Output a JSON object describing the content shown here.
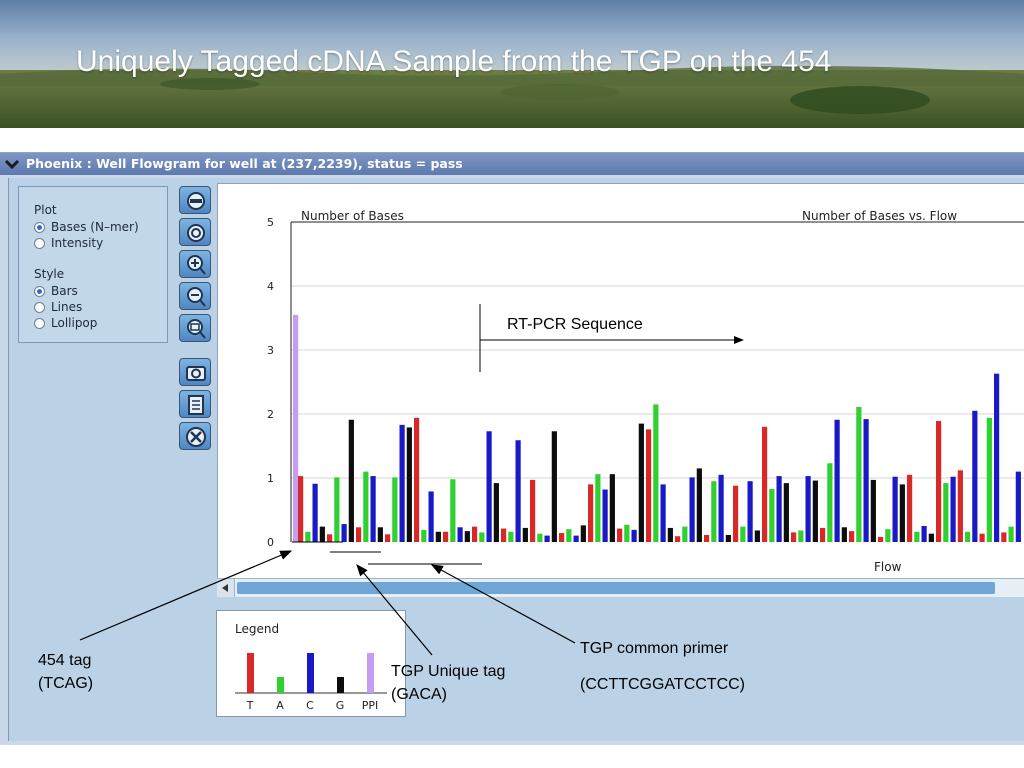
{
  "slide": {
    "title": "Uniquely Tagged cDNA Sample from the TGP on the 454"
  },
  "window": {
    "title": "Phoenix : Well Flowgram for well at (237,2239), status = pass"
  },
  "plot_options": {
    "plot_label": "Plot",
    "plot_modes": [
      {
        "label": "Bases (N–mer)",
        "selected": true
      },
      {
        "label": "Intensity",
        "selected": false
      }
    ],
    "style_label": "Style",
    "styles": [
      {
        "label": "Bars",
        "selected": true
      },
      {
        "label": "Lines",
        "selected": false
      },
      {
        "label": "Lollipop",
        "selected": false
      }
    ]
  },
  "toolbar": {
    "buttons": [
      "fit-icon",
      "reset-icon",
      "zoom-in-icon",
      "zoom-out-icon",
      "zoom-area-icon",
      "camera-icon",
      "copy-icon",
      "close-icon"
    ]
  },
  "colors": {
    "T": "#d92828",
    "A": "#2fd02f",
    "C": "#1919c6",
    "G": "#0d0d0d",
    "PPI": "#c39ef2",
    "accent": "#2b6fd0"
  },
  "chart_data": {
    "type": "bar",
    "title": "Number of Bases vs. Flow",
    "ylabel": "Number of Bases",
    "xlabel": "Flow",
    "ylim": [
      0,
      5
    ],
    "yticks": [
      "0",
      "1",
      "2",
      "3",
      "4",
      "5"
    ],
    "grid": true,
    "flow_order": [
      "T",
      "A",
      "C",
      "G"
    ],
    "series": [
      {
        "name": "PPI",
        "values": [
          3.55
        ]
      },
      {
        "name": "T",
        "values": [
          1.03,
          0.12,
          0.23,
          0.12,
          1.94,
          0.16,
          0.24,
          0.21,
          0.97,
          0.14,
          0.9,
          0.21,
          1.76,
          0.09,
          0.11,
          0.88,
          1.8,
          0.15,
          0.22,
          0.17,
          0.08,
          1.05,
          1.89,
          1.12,
          0.13,
          0.15,
          1.0,
          0.13,
          0.12,
          0.18,
          0.16,
          0.88,
          0.14,
          0.09,
          0.96
        ]
      },
      {
        "name": "A",
        "values": [
          0.16,
          1.01,
          1.1,
          1.01,
          0.19,
          0.98,
          0.15,
          0.16,
          0.13,
          0.2,
          1.06,
          0.27,
          2.15,
          0.24,
          0.95,
          0.24,
          0.83,
          0.18,
          1.23,
          2.11,
          0.2,
          0.16,
          0.92,
          0.16,
          1.94,
          0.24,
          0.95,
          0.07,
          0.22,
          1.9,
          0.27
        ]
      },
      {
        "name": "C",
        "values": [
          0.91,
          0.28,
          1.03,
          1.83,
          0.79,
          0.23,
          1.73,
          1.59,
          0.1,
          0.1,
          0.82,
          0.19,
          0.9,
          1.01,
          1.05,
          0.95,
          1.03,
          1.03,
          1.91,
          1.92,
          1.02,
          0.25,
          1.02,
          2.05,
          2.63,
          1.1,
          1.15,
          1.85,
          0.97,
          0.25
        ]
      },
      {
        "name": "G",
        "values": [
          0.24,
          1.91,
          0.23,
          1.79,
          0.16,
          0.17,
          0.92,
          0.22,
          1.73,
          0.26,
          1.06,
          1.85,
          0.22,
          1.15,
          0.11,
          0.18,
          0.92,
          0.96,
          0.23,
          0.97,
          0.9,
          0.13
        ]
      }
    ],
    "annotation": "RT-PCR Sequence"
  },
  "legend": {
    "title": "Legend",
    "items": [
      {
        "key": "T",
        "value": 1.0
      },
      {
        "key": "A",
        "value": 0.4
      },
      {
        "key": "C",
        "value": 1.0
      },
      {
        "key": "G",
        "value": 0.4
      },
      {
        "key": "PPI",
        "value": 1.0
      }
    ]
  },
  "callouts": {
    "tag454_line1": "454 tag",
    "tag454_line2": "(TCAG)",
    "unique_line1": "TGP Unique tag",
    "unique_line2": "(GACA)",
    "primer_line1": "TGP common primer",
    "primer_line2": "(CCTTCGGATCCTCC)"
  }
}
